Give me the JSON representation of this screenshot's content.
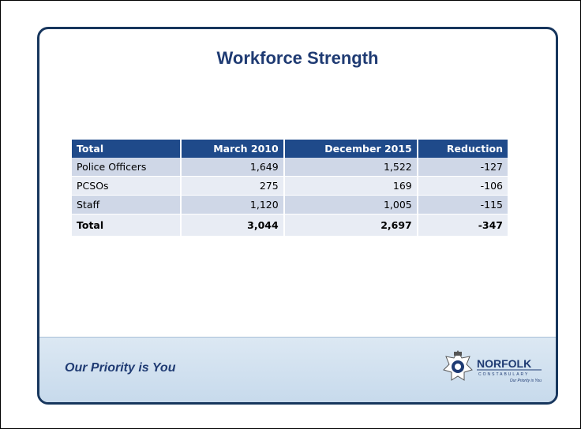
{
  "title": "Workforce Strength",
  "table": {
    "header": [
      "Total",
      "March 2010",
      "December 2015",
      "Reduction"
    ],
    "rows": [
      [
        "Police Officers",
        "1,649",
        "1,522",
        "-127"
      ],
      [
        "PCSOs",
        "275",
        "169",
        "-106"
      ],
      [
        "Staff",
        "1,120",
        "1,005",
        "-115"
      ],
      [
        "Total",
        "3,044",
        "2,697",
        "-347"
      ]
    ]
  },
  "footer": {
    "tagline": "Our Priority is You",
    "logo": {
      "name": "NORFOLK",
      "subtitle": "CONSTABULARY",
      "motto": "Our Priority is You"
    }
  }
}
